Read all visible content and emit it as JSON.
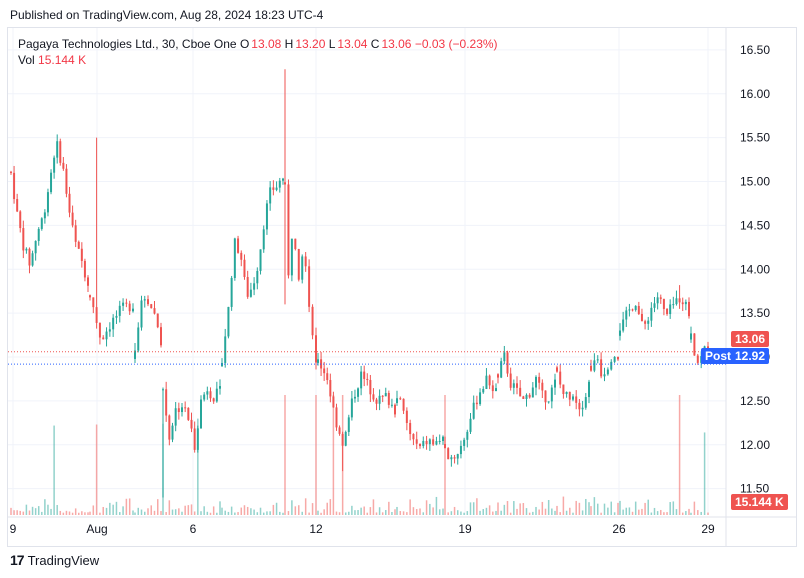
{
  "header": {
    "published": "Published on TradingView.com, Aug 28, 2024 18:23 UTC-4"
  },
  "legend": {
    "symbol": "Pagaya Technologies Ltd., 30, Cboe One",
    "o_label": "O",
    "o_value": "13.08",
    "h_label": "H",
    "h_value": "13.20",
    "l_label": "L",
    "l_value": "13.04",
    "c_label": "C",
    "c_value": "13.06",
    "change": "−0.03 (−0.23%)",
    "vol_label": "Vol",
    "vol_value": "15.144 K"
  },
  "badges": {
    "last_price": "13.06",
    "post_label": "Post",
    "post_price": "12.92",
    "volume": "15.144 K"
  },
  "footer": {
    "brand": "TradingView",
    "logo_glyph": "17"
  },
  "colors": {
    "up": "#26a69a",
    "down": "#ef5350",
    "post": "#2962ff",
    "grid": "#f0f3fa"
  },
  "chart_data": {
    "type": "candlestick",
    "interval": "30",
    "ylim": [
      11.2,
      16.75
    ],
    "y_ticks": [
      "16.50",
      "16.00",
      "15.50",
      "15.00",
      "14.50",
      "14.00",
      "13.50",
      "13.00",
      "12.50",
      "12.00",
      "11.50"
    ],
    "x_ticks": [
      "9",
      "Aug",
      "6",
      "12",
      "19",
      "26",
      "29"
    ],
    "last_price": 13.06,
    "post_price": 12.92,
    "sessions": [
      {
        "label": "9",
        "path": [
          15.1,
          14.6,
          14.25,
          14.05,
          14.4,
          14.6,
          15.0,
          15.45,
          15.2,
          14.7,
          14.3,
          14.1,
          13.85
        ]
      },
      {
        "label": "",
        "path": [
          13.75,
          13.2,
          13.4,
          13.55,
          13.6
        ]
      },
      {
        "label": "",
        "path": [
          13.1,
          13.55,
          13.7,
          13.6,
          13.45,
          13.2
        ]
      },
      {
        "label": "6",
        "path": [
          12.6,
          12.1,
          12.4,
          12.45,
          12.3,
          12.0,
          12.5,
          12.65,
          12.55,
          12.6
        ]
      },
      {
        "label": "",
        "path": [
          13.0,
          13.5,
          14.3,
          14.2,
          13.7,
          13.8,
          14.1,
          14.6,
          14.9,
          14.95,
          15.05
        ]
      },
      {
        "label": "",
        "path": [
          14.9,
          13.9,
          14.4,
          14.3,
          13.95,
          14.2,
          14.1,
          13.6,
          13.3,
          12.9
        ]
      },
      {
        "label": "12",
        "path": [
          12.95,
          12.8,
          12.3,
          12.0,
          12.5,
          12.8,
          12.65,
          12.5,
          12.55,
          12.4
        ]
      },
      {
        "label": "",
        "path": [
          12.6,
          12.3,
          12.05,
          11.95,
          12.05,
          12.0,
          12.1
        ]
      },
      {
        "label": "",
        "path": [
          11.9,
          11.85,
          12.0,
          12.3,
          12.6,
          12.75,
          12.6
        ]
      },
      {
        "label": "19",
        "path": [
          12.8,
          13.0,
          12.7,
          12.6,
          12.5,
          12.6,
          12.75,
          12.55,
          12.55,
          12.7
        ]
      },
      {
        "label": "",
        "path": [
          12.8,
          12.6,
          12.55,
          12.6,
          12.45,
          12.5,
          12.7
        ]
      },
      {
        "label": "26",
        "path": [
          12.9,
          13.05,
          12.8,
          12.9,
          13.05,
          13.0
        ]
      },
      {
        "label": "",
        "path": [
          13.3,
          13.5,
          13.65,
          13.3,
          13.55,
          13.7,
          13.45,
          13.6,
          13.7,
          13.5
        ]
      },
      {
        "label": "29",
        "path": [
          13.3,
          13.0,
          12.92,
          13.1,
          13.06
        ]
      }
    ],
    "volume_last": "15.144 K"
  }
}
